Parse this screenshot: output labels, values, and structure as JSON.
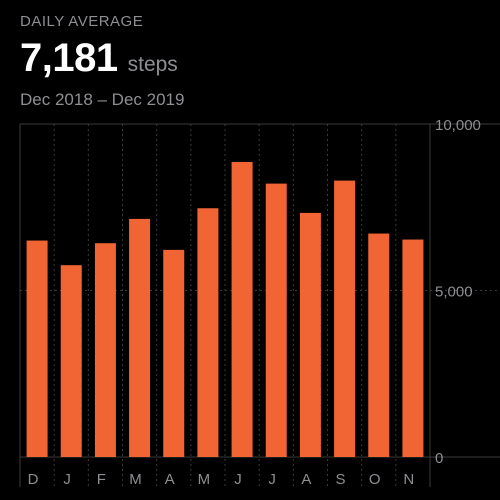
{
  "summary": {
    "label": "DAILY AVERAGE",
    "value": "7,181",
    "unit": "steps",
    "date_range": "Dec 2018 – Dec 2019"
  },
  "colors": {
    "bar": "#f06533",
    "grid": "#3a3a3c",
    "text_secondary": "#8e8e93",
    "background": "#000000"
  },
  "chart_data": {
    "type": "bar",
    "title": "",
    "xlabel": "",
    "ylabel": "",
    "categories": [
      "D",
      "J",
      "F",
      "M",
      "A",
      "M",
      "J",
      "J",
      "A",
      "S",
      "O",
      "N"
    ],
    "values": [
      6500,
      5760,
      6420,
      7150,
      6220,
      7470,
      8860,
      8210,
      7330,
      8300,
      6710,
      6530
    ],
    "ylim": [
      0,
      10000
    ],
    "yticks": [
      0,
      5000,
      10000
    ],
    "ytick_labels": [
      "0",
      "5,000",
      "10,000"
    ],
    "grid": true,
    "grid_style": "dotted vertical, solid horizontal top/bottom"
  }
}
